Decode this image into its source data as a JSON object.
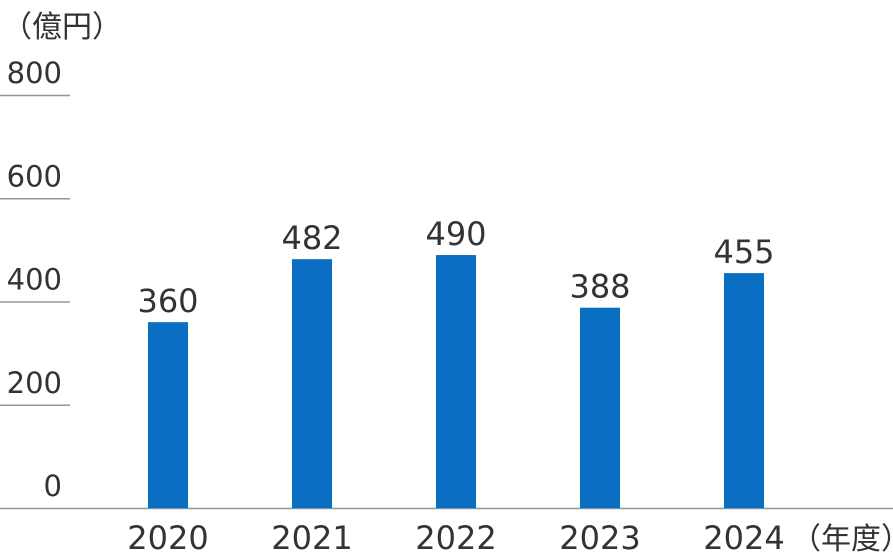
{
  "chart_data": {
    "type": "bar",
    "title": "",
    "ylabel": "（億円）",
    "xlabel": "（年度）",
    "categories": [
      "2020",
      "2021",
      "2022",
      "2023",
      "2024"
    ],
    "values": [
      360,
      482,
      490,
      388,
      455
    ],
    "data_labels": [
      "360",
      "482",
      "490",
      "388",
      "455"
    ],
    "yticks": [
      "0",
      "200",
      "400",
      "600",
      "800"
    ],
    "ylim": [
      0,
      800
    ],
    "bar_color": "#0a6fc2",
    "grid": false
  }
}
